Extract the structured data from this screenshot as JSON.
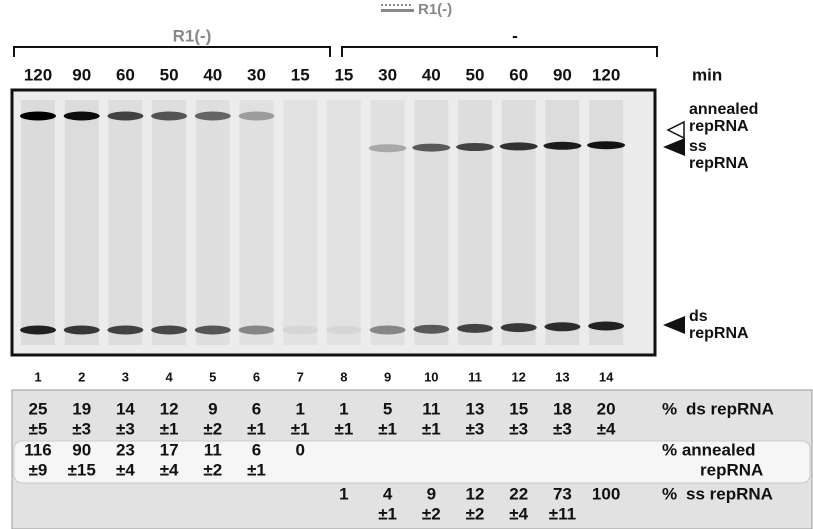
{
  "header": {
    "legend_label": "R1(-)",
    "group_labels": [
      "R1(-)",
      "-"
    ],
    "unit": "min",
    "times": [
      "120",
      "90",
      "60",
      "50",
      "40",
      "30",
      "15",
      "15",
      "30",
      "40",
      "50",
      "60",
      "90",
      "120"
    ]
  },
  "gel": {
    "markers": [
      [
        "annealed",
        "repRNA"
      ],
      [
        "ss",
        "repRNA"
      ],
      [
        "ds",
        "repRNA"
      ]
    ]
  },
  "lanes": [
    "1",
    "2",
    "3",
    "4",
    "5",
    "6",
    "7",
    "8",
    "9",
    "10",
    "11",
    "12",
    "13",
    "14"
  ],
  "table": {
    "rows": [
      {
        "label": [
          "%",
          "ds repRNA"
        ],
        "values": [
          "25",
          "19",
          "14",
          "12",
          "9",
          "6",
          "1",
          "1",
          "5",
          "11",
          "13",
          "15",
          "18",
          "20"
        ],
        "errors": [
          "±5",
          "±3",
          "±3",
          "±1",
          "±2",
          "±1",
          "±1",
          "±1",
          "±1",
          "±1",
          "±3",
          "±3",
          "±3",
          "±4"
        ]
      },
      {
        "label": [
          "% annealed",
          "repRNA"
        ],
        "values": [
          "116",
          "90",
          "23",
          "17",
          "11",
          "6",
          "0",
          null,
          null,
          null,
          null,
          null,
          null,
          null
        ],
        "errors": [
          "±9",
          "±15",
          "±4",
          "±4",
          "±2",
          "±1",
          null,
          null,
          null,
          null,
          null,
          null,
          null,
          null
        ]
      },
      {
        "label": [
          "%",
          "ss repRNA"
        ],
        "values": [
          null,
          null,
          null,
          null,
          null,
          null,
          null,
          "1",
          "4",
          "9",
          "12",
          "22",
          "73",
          "100"
        ],
        "errors": [
          null,
          null,
          null,
          null,
          null,
          null,
          null,
          null,
          "±1",
          "±2",
          "±2",
          "±4",
          "±11",
          null
        ]
      }
    ]
  }
}
